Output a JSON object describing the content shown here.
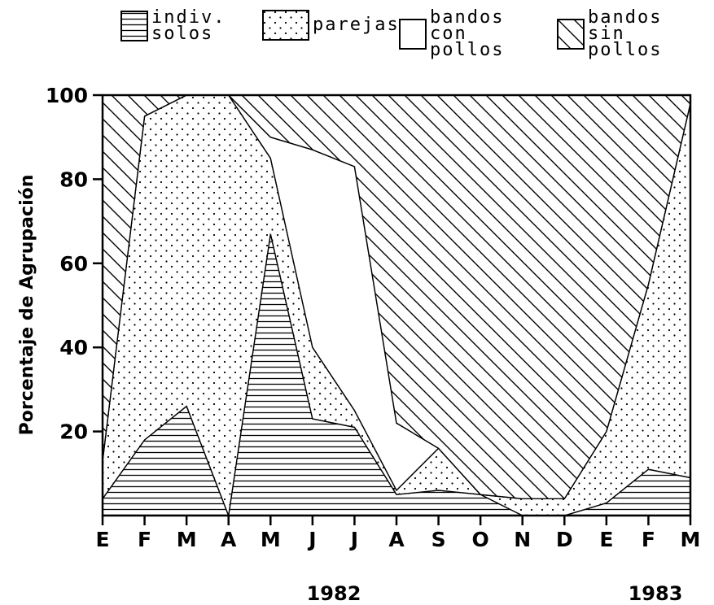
{
  "chart_data": {
    "type": "stacked_area",
    "y_label": "Porcentaje de Agrupación",
    "categories": [
      "E",
      "F",
      "M",
      "A",
      "M",
      "J",
      "J",
      "A",
      "S",
      "O",
      "N",
      "D",
      "E",
      "F",
      "M"
    ],
    "annotations": [
      "1982",
      "1983"
    ],
    "ylim": [
      0,
      100
    ],
    "yticks": [
      20,
      40,
      60,
      80,
      100
    ],
    "series": [
      {
        "name": "indiv. solos",
        "color": "#000000",
        "pattern": "hlines",
        "values": [
          4,
          18,
          26,
          0,
          67,
          23,
          21,
          5,
          6,
          5,
          0,
          0,
          3,
          11,
          9
        ]
      },
      {
        "name": "parejas",
        "color": "#000000",
        "pattern": "dots",
        "values": [
          9,
          77,
          74,
          100,
          18,
          17,
          4,
          1,
          10,
          0,
          4,
          4,
          17,
          44,
          89
        ]
      },
      {
        "name": "bandos con pollos",
        "color": "#000000",
        "pattern": "blank",
        "values": [
          0,
          0,
          0,
          0,
          5,
          47,
          58,
          16,
          0,
          0,
          0,
          0,
          0,
          0,
          0
        ]
      },
      {
        "name": "bandos sin pollos",
        "color": "#000000",
        "pattern": "diag",
        "values": [
          87,
          5,
          0,
          0,
          10,
          13,
          17,
          78,
          84,
          95,
          96,
          96,
          80,
          45,
          2
        ]
      }
    ]
  }
}
